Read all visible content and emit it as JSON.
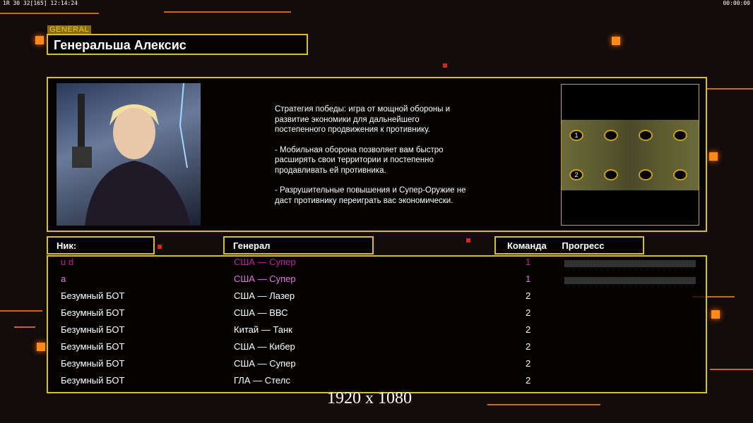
{
  "hud": {
    "left_text": "1R 30 32[165] 12:14:24",
    "right_text": "00:00:00"
  },
  "general_tag": "GENERAL",
  "title": "Генеральша Алексис",
  "description": [
    "Стратегия победы: игра от мощной обороны и\n развитие экономики для дальнейшего\n постепенного продвижения к противнику.",
    "- Мобильная оборона позволяет вам быстро\n расширять свои территории и постепенно\n продавливать ей противника.",
    "- Разрушительные повышения и Супер-Оружие не\n даст противнику переиграть вас экономически."
  ],
  "map": {
    "start_labels": [
      "1",
      "2"
    ]
  },
  "table": {
    "headers": {
      "nick": "Ник:",
      "general": "Генерал",
      "team": "Команда",
      "progress": "Прогресс"
    },
    "rows": [
      {
        "nick": "u d",
        "general": "США — Супер",
        "team": "1",
        "color": "#c01ea0",
        "progress": 0
      },
      {
        "nick": "a",
        "general": "США — Супер",
        "team": "1",
        "color": "#e07ae0",
        "progress": 0
      },
      {
        "nick": "Безумный БОТ",
        "general": "США — Лазер",
        "team": "2",
        "color": "#ffffff"
      },
      {
        "nick": "Безумный БОТ",
        "general": "США — ВВС",
        "team": "2",
        "color": "#ffffff"
      },
      {
        "nick": "Безумный БОТ",
        "general": "Китай — Танк",
        "team": "2",
        "color": "#ffffff"
      },
      {
        "nick": "Безумный БОТ",
        "general": "США — Кибер",
        "team": "2",
        "color": "#ffffff"
      },
      {
        "nick": "Безумный БОТ",
        "general": "США — Супер",
        "team": "2",
        "color": "#ffffff"
      },
      {
        "nick": "Безумный БОТ",
        "general": "ГЛА — Стелс",
        "team": "2",
        "color": "#ffffff"
      }
    ]
  },
  "resolution_watermark": "1920 x 1080"
}
